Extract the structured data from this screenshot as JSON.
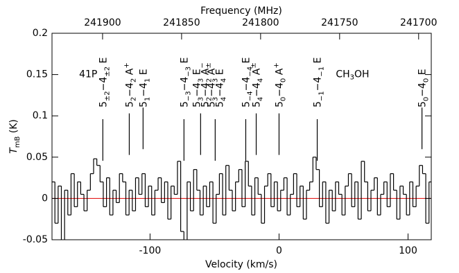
{
  "chart_data": {
    "type": "step",
    "xlabel": "Velocity (km/s)",
    "x2label": "Frequency (MHz)",
    "ylabel": [
      {
        "t": "T"
      },
      {
        "sub": "mB"
      },
      {
        "t": " (K)"
      }
    ],
    "annotations": [
      {
        "text": [
          {
            "t": "41P"
          }
        ],
        "x": -155,
        "y": 0.15
      },
      {
        "text": [
          {
            "t": "CH"
          },
          {
            "sub": "3"
          },
          {
            "t": "OH"
          }
        ],
        "x": 44,
        "y": 0.15
      }
    ],
    "xlim": [
      -176,
      118
    ],
    "xticks": [
      -100,
      0,
      100
    ],
    "x2lim": [
      241932,
      241692
    ],
    "x2ticks": [
      241900,
      241850,
      241800,
      241750,
      241700
    ],
    "ylim": [
      -0.05,
      0.2
    ],
    "yticks": [
      -0.05,
      0,
      0.05,
      0.1,
      0.15,
      0.2
    ],
    "baseline": 0,
    "baseline_color": "#e00000",
    "series": [
      {
        "color": "#000000",
        "x": [
          -175,
          -172.5,
          -170,
          -167.5,
          -165,
          -162.5,
          -160,
          -157.5,
          -155,
          -152.5,
          -150,
          -147.5,
          -145,
          -142.5,
          -140,
          -137.5,
          -135,
          -132.5,
          -130,
          -127.5,
          -125,
          -122.5,
          -120,
          -117.5,
          -115,
          -112.5,
          -110,
          -107.5,
          -105,
          -102.5,
          -100,
          -97.5,
          -95,
          -92.5,
          -90,
          -87.5,
          -85,
          -82.5,
          -80,
          -77.5,
          -75,
          -72.5,
          -70,
          -67.5,
          -65,
          -62.5,
          -60,
          -57.5,
          -55,
          -52.5,
          -50,
          -47.5,
          -45,
          -42.5,
          -40,
          -37.5,
          -35,
          -32.5,
          -30,
          -27.5,
          -25,
          -22.5,
          -20,
          -17.5,
          -15,
          -12.5,
          -10,
          -7.5,
          -5,
          -2.5,
          0,
          2.5,
          5,
          7.5,
          10,
          12.5,
          15,
          17.5,
          20,
          22.5,
          25,
          27.5,
          30,
          32.5,
          35,
          37.5,
          40,
          42.5,
          45,
          47.5,
          50,
          52.5,
          55,
          57.5,
          60,
          62.5,
          65,
          67.5,
          70,
          72.5,
          75,
          77.5,
          80,
          82.5,
          85,
          87.5,
          90,
          92.5,
          95,
          97.5,
          100,
          102.5,
          105,
          107.5,
          110,
          112.5,
          115,
          117.5
        ],
        "values": [
          0.02,
          -0.03,
          0.015,
          -0.06,
          0.01,
          -0.02,
          0.03,
          -0.01,
          0.02,
          0.005,
          -0.015,
          0.01,
          0.03,
          0.048,
          0.04,
          0.02,
          -0.01,
          0.025,
          -0.02,
          0.01,
          -0.005,
          0.03,
          0.02,
          -0.02,
          0.01,
          -0.015,
          0.025,
          0.005,
          0.03,
          -0.01,
          0.015,
          -0.02,
          0.01,
          0.025,
          -0.005,
          0.02,
          -0.025,
          0.015,
          0.005,
          0.045,
          -0.04,
          -0.06,
          0.02,
          -0.015,
          0.035,
          0.01,
          -0.02,
          0.015,
          -0.01,
          0.02,
          -0.03,
          0.005,
          0.03,
          -0.02,
          0.04,
          0.01,
          -0.015,
          0.02,
          0.035,
          -0.01,
          0.045,
          0.015,
          -0.02,
          0.025,
          0.005,
          -0.03,
          0.015,
          0.03,
          -0.01,
          0.02,
          -0.015,
          0.01,
          0.025,
          -0.02,
          0.005,
          0.03,
          -0.01,
          0.015,
          -0.025,
          0.01,
          0.02,
          0.05,
          0.035,
          -0.01,
          0.02,
          -0.03,
          0.01,
          -0.015,
          0.02,
          0.005,
          -0.02,
          0.015,
          0.03,
          -0.01,
          0.02,
          -0.025,
          0.045,
          0.02,
          -0.015,
          0.01,
          0.025,
          -0.02,
          0.005,
          0.02,
          -0.01,
          0.03,
          0.01,
          -0.025,
          0.015,
          0.005,
          -0.02,
          0.02,
          -0.01,
          0.015,
          0.04,
          0.03,
          -0.03,
          0.02
        ]
      }
    ],
    "markers": [
      {
        "x": -136.6,
        "y": 0.096,
        "labels": [
          [
            {
              "t": "5"
            },
            {
              "sub": "±2"
            },
            {
              "t": "−4"
            },
            {
              "sub": "±2"
            },
            {
              "t": " E"
            }
          ]
        ]
      },
      {
        "x": -116.1,
        "y": 0.103,
        "labels": [
          [
            {
              "t": "5"
            },
            {
              "sub": "2"
            },
            {
              "t": "−4"
            },
            {
              "sub": "2"
            },
            {
              "t": " A"
            },
            {
              "sup": "+"
            }
          ]
        ]
      },
      {
        "x": -105.4,
        "y": 0.11,
        "labels": [
          [
            {
              "t": "5"
            },
            {
              "sub": "1"
            },
            {
              "t": "−4"
            },
            {
              "sub": "1"
            },
            {
              "t": " E"
            }
          ]
        ]
      },
      {
        "x": -73.7,
        "y": 0.096,
        "labels": [
          [
            {
              "t": "5"
            },
            {
              "sub": "−3"
            },
            {
              "t": "−4"
            },
            {
              "sub": "−3"
            },
            {
              "t": " E"
            }
          ]
        ]
      },
      {
        "x": -60.8,
        "y": 0.103,
        "labels": [
          [
            {
              "t": "5"
            },
            {
              "sub": "3"
            },
            {
              "t": "−4"
            },
            {
              "sub": "3"
            },
            {
              "t": " E"
            }
          ],
          [
            {
              "t": "5"
            },
            {
              "sub": "2"
            },
            {
              "t": "−4"
            },
            {
              "sub": "2"
            },
            {
              "t": " A"
            },
            {
              "sup": "−"
            }
          ]
        ]
      },
      {
        "x": -49.5,
        "y": 0.096,
        "labels": [
          [
            {
              "t": "5"
            },
            {
              "sub": "3"
            },
            {
              "t": "−4"
            },
            {
              "sub": "3"
            },
            {
              "t": " A"
            },
            {
              "sup": "±"
            }
          ],
          [
            {
              "t": "5"
            },
            {
              "sub": "4"
            },
            {
              "t": "−4"
            },
            {
              "sub": "4"
            },
            {
              "t": " E"
            }
          ]
        ]
      },
      {
        "x": -25.8,
        "y": 0.096,
        "labels": [
          [
            {
              "t": "5"
            },
            {
              "sub": "−4"
            },
            {
              "t": "−4"
            },
            {
              "sub": "−4"
            },
            {
              "t": " E"
            }
          ]
        ]
      },
      {
        "x": -17.7,
        "y": 0.103,
        "labels": [
          [
            {
              "t": "5"
            },
            {
              "sub": "4"
            },
            {
              "t": "−4"
            },
            {
              "sub": "4"
            },
            {
              "t": " A"
            },
            {
              "sup": "±"
            }
          ]
        ]
      },
      {
        "x": 0,
        "y": 0.103,
        "labels": [
          [
            {
              "t": "5"
            },
            {
              "sub": "0"
            },
            {
              "t": "−4"
            },
            {
              "sub": "0"
            },
            {
              "t": " A"
            },
            {
              "sup": "+"
            }
          ]
        ]
      },
      {
        "x": 29.6,
        "y": 0.096,
        "labels": [
          [
            {
              "t": "5"
            },
            {
              "sub": "−1"
            },
            {
              "t": "−4"
            },
            {
              "sub": "−1"
            },
            {
              "t": " E"
            }
          ]
        ]
      },
      {
        "x": 110.8,
        "y": 0.11,
        "labels": [
          [
            {
              "t": "5"
            },
            {
              "sub": "0"
            },
            {
              "t": "−4"
            },
            {
              "sub": "0"
            },
            {
              "t": " E"
            }
          ]
        ]
      }
    ]
  }
}
